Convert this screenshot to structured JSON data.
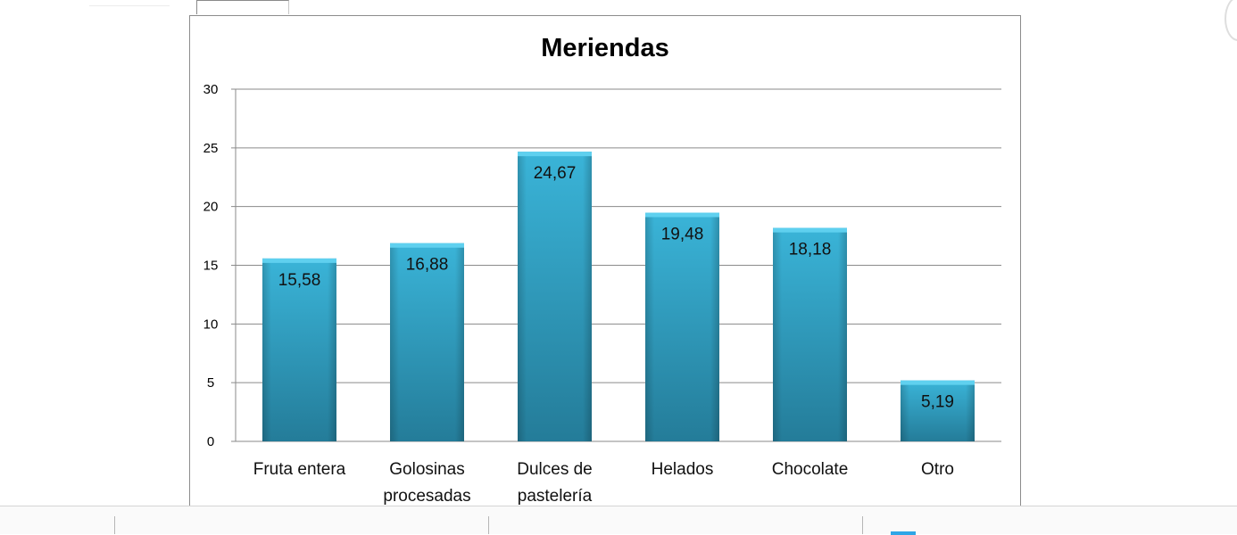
{
  "chart_data": {
    "type": "bar",
    "title": "Meriendas",
    "categories": [
      [
        "Fruta entera"
      ],
      [
        "Golosinas",
        "procesadas"
      ],
      [
        "Dulces de",
        "pastelería"
      ],
      [
        "Helados"
      ],
      [
        "Chocolate"
      ],
      [
        "Otro"
      ]
    ],
    "values": [
      15.58,
      16.88,
      24.67,
      19.48,
      18.18,
      5.19
    ],
    "data_labels": [
      "15,58",
      "16,88",
      "24,67",
      "19,48",
      "18,18",
      "5,19"
    ],
    "yticks": [
      "0",
      "5",
      "10",
      "15",
      "20",
      "25",
      "30"
    ],
    "ylim": [
      0,
      30
    ],
    "xlabel": "",
    "ylabel": "",
    "grid": true,
    "legend": "none",
    "colors": {
      "bar": "#3ab4d8",
      "bar_top": "#5fd0ef",
      "bar_dark": "#247c99"
    }
  }
}
